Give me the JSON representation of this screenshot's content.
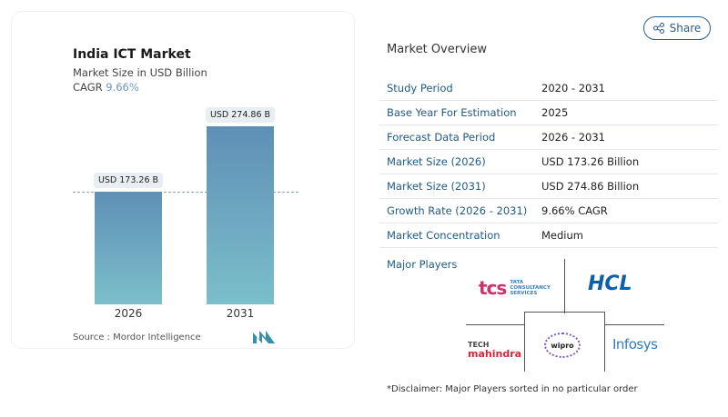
{
  "chart": {
    "title": "India ICT Market",
    "subtitle": "Market Size in USD Billion",
    "cagr_label": "CAGR",
    "cagr_value": "9.66%",
    "source": "Source :  Mordor Intelligence"
  },
  "chart_data": {
    "type": "bar",
    "title": "India ICT Market",
    "categories": [
      "2026",
      "2031"
    ],
    "values": [
      173.26,
      274.86
    ],
    "data_labels": [
      "USD 173.26 B",
      "USD 274.86 B"
    ],
    "ylim": [
      0,
      300
    ],
    "colors": [
      "#5f8fb6",
      "#7bbfca"
    ]
  },
  "share_label": "Share",
  "overview": {
    "title": "Market Overview",
    "rows": [
      {
        "k": "Study Period",
        "v": "2020 - 2031"
      },
      {
        "k": "Base Year For Estimation",
        "v": "2025"
      },
      {
        "k": "Forecast Data Period",
        "v": "2026 - 2031"
      },
      {
        "k": "Market Size (2026)",
        "v": "USD 173.26 Billion"
      },
      {
        "k": "Market Size (2031)",
        "v": "USD 274.86 Billion"
      },
      {
        "k": "Growth Rate (2026 - 2031)",
        "v": "9.66% CAGR"
      },
      {
        "k": "Market Concentration",
        "v": "Medium"
      }
    ]
  },
  "players": {
    "title": "Major Players",
    "logos": [
      "TCS Tata Consultancy Services",
      "HCL",
      "Tech Mahindra",
      "Wipro",
      "Infosys"
    ]
  },
  "disclaimer": "*Disclaimer: Major Players sorted in no particular order"
}
